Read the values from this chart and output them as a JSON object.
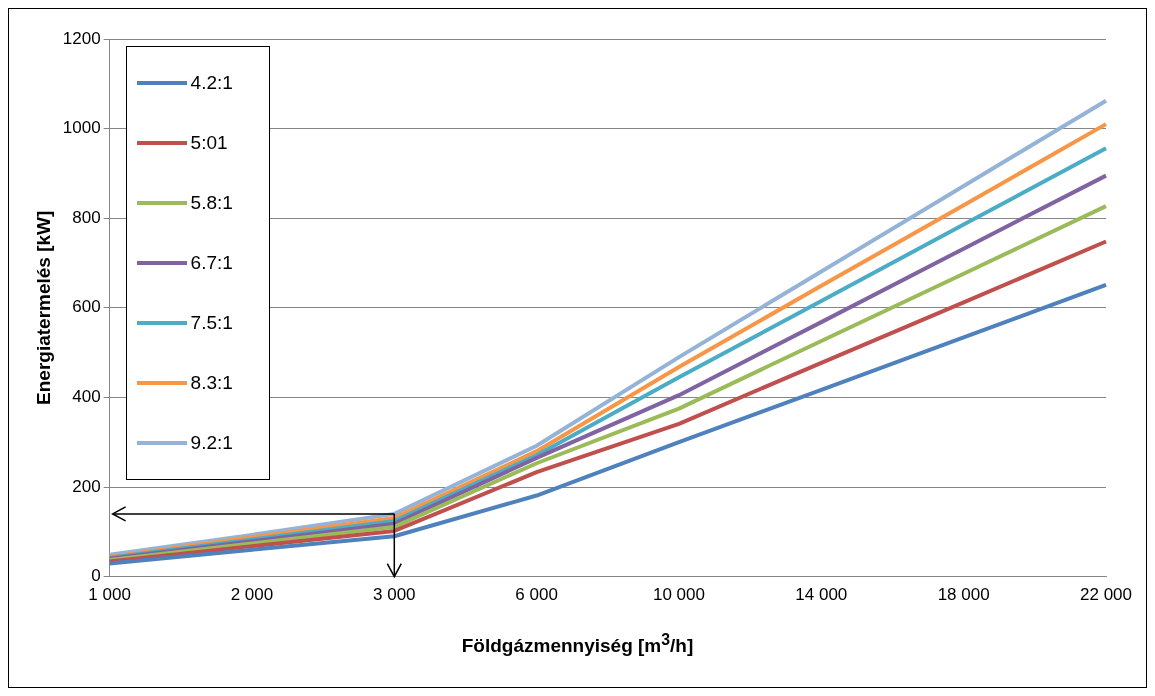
{
  "chart_data": {
    "type": "line",
    "xlabel": "Földgázmennyiség [m$^{3}$/h]",
    "ylabel": "Energiatermelés [kW]",
    "categories": [
      "1 000",
      "2 000",
      "3 000",
      "6 000",
      "10 000",
      "14 000",
      "18 000",
      "22 000"
    ],
    "ylim": [
      0,
      1200
    ],
    "yticks": [
      0,
      200,
      400,
      600,
      800,
      1000,
      1200
    ],
    "grid": "y",
    "legend": "top left",
    "marker": "none",
    "line_style": "solid",
    "series": [
      {
        "name": "4.2:1",
        "color": "#4f81bd",
        "values": [
          29,
          60,
          90,
          181,
          300,
          417,
          534,
          651
        ]
      },
      {
        "name": "5:01",
        "color": "#c0504d",
        "values": [
          34,
          68,
          102,
          233,
          341,
          477,
          612,
          748
        ]
      },
      {
        "name": "5.8:1",
        "color": "#9bbb59",
        "values": [
          37,
          74,
          111,
          253,
          375,
          526,
          676,
          827
        ]
      },
      {
        "name": "6.7:1",
        "color": "#8064a2",
        "values": [
          40,
          79,
          118,
          265,
          405,
          568,
          732,
          895
        ]
      },
      {
        "name": "7.5:1",
        "color": "#4bacc6",
        "values": [
          42,
          83,
          124,
          271,
          445,
          615,
          786,
          956
        ]
      },
      {
        "name": "8.3:1",
        "color": "#f79646",
        "values": [
          44,
          88,
          131,
          280,
          468,
          649,
          829,
          1010
        ]
      },
      {
        "name": "9.2:1",
        "color": "#95b3d7",
        "values": [
          49,
          93,
          140,
          292,
          490,
          681,
          872,
          1062
        ]
      }
    ]
  }
}
